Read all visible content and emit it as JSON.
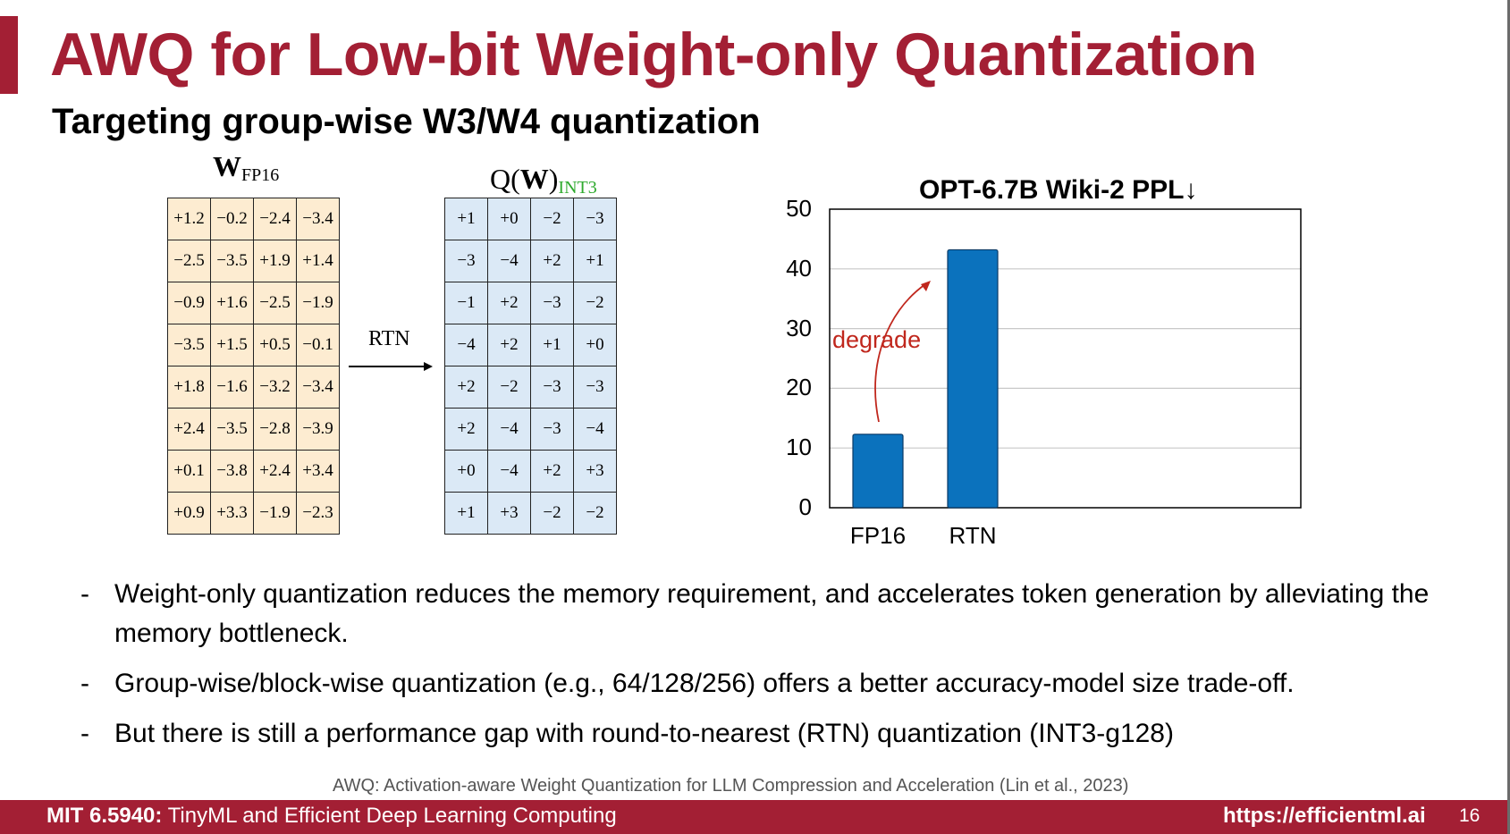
{
  "title": "AWQ for Low-bit Weight-only Quantization",
  "subtitle": "Targeting group-wise W3/W4 quantization",
  "matrix_left": {
    "symbol": "W",
    "subscript": "FP16",
    "rows": [
      [
        "+1.2",
        "−0.2",
        "−2.4",
        "−3.4"
      ],
      [
        "−2.5",
        "−3.5",
        "+1.9",
        "+1.4"
      ],
      [
        "−0.9",
        "+1.6",
        "−2.5",
        "−1.9"
      ],
      [
        "−3.5",
        "+1.5",
        "+0.5",
        "−0.1"
      ],
      [
        "+1.8",
        "−1.6",
        "−3.2",
        "−3.4"
      ],
      [
        "+2.4",
        "−3.5",
        "−2.8",
        "−3.9"
      ],
      [
        "+0.1",
        "−3.8",
        "+2.4",
        "+3.4"
      ],
      [
        "+0.9",
        "+3.3",
        "−1.9",
        "−2.3"
      ]
    ]
  },
  "arrow_label": "RTN",
  "matrix_right": {
    "prefix": "Q(",
    "symbol": "W",
    "suffix": ")",
    "subscript": "INT3",
    "subscript_color": "#2eaa2e",
    "rows": [
      [
        "+1",
        "+0",
        "−2",
        "−3"
      ],
      [
        "−3",
        "−4",
        "+2",
        "+1"
      ],
      [
        "−1",
        "+2",
        "−3",
        "−2"
      ],
      [
        "−4",
        "+2",
        "+1",
        "+0"
      ],
      [
        "+2",
        "−2",
        "−3",
        "−3"
      ],
      [
        "+2",
        "−4",
        "−3",
        "−4"
      ],
      [
        "+0",
        "−4",
        "+2",
        "+3"
      ],
      [
        "+1",
        "+3",
        "−2",
        "−2"
      ]
    ]
  },
  "chart_data": {
    "type": "bar",
    "title": "OPT-6.7B Wiki-2 PPL↓",
    "categories": [
      "FP16",
      "RTN"
    ],
    "values": [
      12.3,
      43.2
    ],
    "ylim": [
      0,
      50
    ],
    "yticks": [
      "0",
      "10",
      "20",
      "30",
      "40",
      "50"
    ],
    "grid": true,
    "bar_color": "#0b72bd",
    "annotation": "degrade",
    "annotation_color": "#c0271d"
  },
  "bullets": [
    "Weight-only quantization reduces the memory requirement, and accelerates token generation by alleviating the memory bottleneck.",
    "Group-wise/block-wise quantization (e.g., 64/128/256) offers a better accuracy-model size trade-off.",
    "But there is still a performance gap with round-to-nearest (RTN) quantization (INT3-g128)"
  ],
  "bullet_marker": "-",
  "citation": "AWQ: Activation-aware Weight Quantization for LLM Compression and Acceleration (Lin et al., 2023)",
  "footer": {
    "course_code": "MIT 6.5940:",
    "course_name": " TinyML and Efficient Deep Learning Computing",
    "url": "https://efficientml.ai",
    "page": "16"
  },
  "colors": {
    "brand": "#a31f34",
    "fp16_cell": "#fdecd1",
    "int3_cell": "#dbe9f6"
  }
}
